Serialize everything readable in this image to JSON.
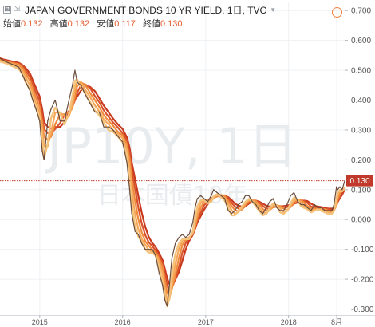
{
  "header": {
    "collapse_glyph": "⊞",
    "arrows_glyph": "⇲",
    "title": "JAPAN GOVERNMENT BONDS 10 YR YIELD, 1日, TVC",
    "open_label": "始値",
    "open_value": "0.132",
    "high_label": "高値",
    "high_value": "0.132",
    "low_label": "安値",
    "low_value": "0.117",
    "close_label": "終値",
    "close_value": "0.130",
    "alert_glyph": "!"
  },
  "watermark": {
    "line1": "JP10Y, 1日",
    "line2": "日本国債10年"
  },
  "price_tag": "0.130",
  "colors": {
    "price_line": "#6b4c3b",
    "ribbon_inner": "#f4c27a",
    "ribbon_mid": "#f08a3c",
    "ribbon_outer": "#c8391e",
    "last_price": "#c0392b",
    "grid": "#eef1f4",
    "axis_text": "#555555"
  },
  "chart_data": {
    "type": "line",
    "title": "JAPAN GOVERNMENT BONDS 10 YR YIELD, 1日, TVC",
    "xlabel": "",
    "ylabel": "",
    "xlim": [
      "2014-07-10",
      "2018-09-05"
    ],
    "ylim": [
      -0.32,
      0.73
    ],
    "y_ticks": [
      "0.700",
      "0.600",
      "0.500",
      "0.400",
      "0.300",
      "0.200",
      "0.100",
      "0.000",
      "-0.100",
      "-0.200",
      "-0.300"
    ],
    "x_ticks": [
      {
        "date": "2015-01-01",
        "label": "2015"
      },
      {
        "date": "2016-01-01",
        "label": "2016"
      },
      {
        "date": "2017-01-01",
        "label": "2017"
      },
      {
        "date": "2018-01-01",
        "label": "2018"
      },
      {
        "date": "2018-08-01",
        "label": "8月"
      }
    ],
    "last_value": 0.13,
    "grid": true,
    "legend": "none",
    "series": [
      {
        "x": [
          "2014-07-10",
          "2014-08-01",
          "2014-09-01",
          "2014-10-01",
          "2014-10-20",
          "2014-11-01",
          "2014-11-20",
          "2014-12-01",
          "2014-12-15",
          "2015-01-01",
          "2015-01-12",
          "2015-01-20",
          "2015-02-05",
          "2015-02-20",
          "2015-03-10",
          "2015-04-01",
          "2015-04-20",
          "2015-05-10",
          "2015-05-25",
          "2015-06-05",
          "2015-06-15",
          "2015-07-01",
          "2015-07-20",
          "2015-08-10",
          "2015-09-01",
          "2015-09-20",
          "2015-10-10",
          "2015-11-01",
          "2015-11-20",
          "2015-12-10",
          "2016-01-01",
          "2016-01-20",
          "2016-02-01",
          "2016-02-10",
          "2016-02-25",
          "2016-03-10",
          "2016-03-25",
          "2016-04-10",
          "2016-04-25",
          "2016-05-10",
          "2016-05-25",
          "2016-06-10",
          "2016-06-25",
          "2016-07-05",
          "2016-07-15",
          "2016-07-25",
          "2016-08-05",
          "2016-08-20",
          "2016-09-05",
          "2016-09-20",
          "2016-10-05",
          "2016-10-20",
          "2016-11-05",
          "2016-11-15",
          "2016-11-25",
          "2016-12-10",
          "2016-12-25",
          "2017-01-10",
          "2017-01-25",
          "2017-02-05",
          "2017-02-20",
          "2017-03-10",
          "2017-03-25",
          "2017-04-10",
          "2017-04-25",
          "2017-05-10",
          "2017-05-25",
          "2017-06-10",
          "2017-06-25",
          "2017-07-10",
          "2017-07-25",
          "2017-08-10",
          "2017-08-25",
          "2017-09-10",
          "2017-09-25",
          "2017-10-10",
          "2017-10-25",
          "2017-11-10",
          "2017-11-25",
          "2017-12-10",
          "2017-12-25",
          "2018-01-10",
          "2018-01-25",
          "2018-02-10",
          "2018-02-25",
          "2018-03-10",
          "2018-03-25",
          "2018-04-10",
          "2018-04-25",
          "2018-05-10",
          "2018-05-25",
          "2018-06-10",
          "2018-06-25",
          "2018-07-10",
          "2018-07-20",
          "2018-07-31",
          "2018-08-05",
          "2018-08-15",
          "2018-08-25",
          "2018-09-05"
        ],
        "values": [
          0.54,
          0.53,
          0.52,
          0.51,
          0.48,
          0.46,
          0.43,
          0.4,
          0.37,
          0.33,
          0.23,
          0.2,
          0.33,
          0.37,
          0.4,
          0.33,
          0.33,
          0.4,
          0.45,
          0.5,
          0.46,
          0.45,
          0.42,
          0.39,
          0.36,
          0.36,
          0.31,
          0.31,
          0.3,
          0.28,
          0.26,
          0.19,
          0.1,
          0.02,
          -0.04,
          -0.05,
          -0.08,
          -0.1,
          -0.1,
          -0.1,
          -0.12,
          -0.18,
          -0.22,
          -0.27,
          -0.29,
          -0.22,
          -0.13,
          -0.08,
          -0.06,
          -0.05,
          -0.06,
          -0.05,
          -0.01,
          0.04,
          0.07,
          0.08,
          0.07,
          0.06,
          0.08,
          0.1,
          0.09,
          0.08,
          0.07,
          0.03,
          0.02,
          0.03,
          0.05,
          0.06,
          0.08,
          0.08,
          0.06,
          0.05,
          0.03,
          0.02,
          0.04,
          0.06,
          0.07,
          0.04,
          0.03,
          0.03,
          0.05,
          0.08,
          0.09,
          0.06,
          0.05,
          0.05,
          0.04,
          0.03,
          0.05,
          0.04,
          0.04,
          0.03,
          0.03,
          0.03,
          0.05,
          0.11,
          0.1,
          0.11,
          0.1,
          0.13
        ]
      }
    ]
  }
}
